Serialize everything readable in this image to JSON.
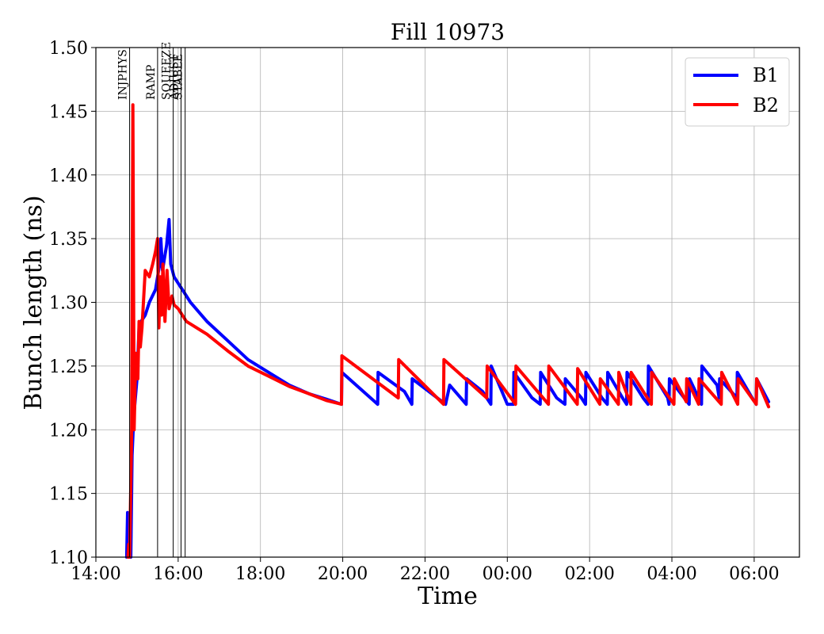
{
  "chart_data": {
    "type": "line",
    "title": "Fill 10973",
    "xlabel": "Time",
    "ylabel": "Bunch length (ns)",
    "xlim_hours": [
      14.0,
      31.1
    ],
    "ylim": [
      1.1,
      1.5
    ],
    "grid": true,
    "legend_position": "top-right",
    "x_ticks": [
      {
        "value": 14,
        "label": "14:00"
      },
      {
        "value": 16,
        "label": "16:00"
      },
      {
        "value": 18,
        "label": "18:00"
      },
      {
        "value": 20,
        "label": "20:00"
      },
      {
        "value": 22,
        "label": "22:00"
      },
      {
        "value": 24,
        "label": "00:00"
      },
      {
        "value": 26,
        "label": "02:00"
      },
      {
        "value": 28,
        "label": "04:00"
      },
      {
        "value": 30,
        "label": "06:00"
      }
    ],
    "y_ticks": [
      {
        "value": 1.1,
        "label": "1.10"
      },
      {
        "value": 1.15,
        "label": "1.15"
      },
      {
        "value": 1.2,
        "label": "1.20"
      },
      {
        "value": 1.25,
        "label": "1.25"
      },
      {
        "value": 1.3,
        "label": "1.30"
      },
      {
        "value": 1.35,
        "label": "1.35"
      },
      {
        "value": 1.4,
        "label": "1.40"
      },
      {
        "value": 1.45,
        "label": "1.45"
      },
      {
        "value": 1.5,
        "label": "1.50"
      }
    ],
    "phases": [
      {
        "name": "INJPHYS",
        "x": 14.82
      },
      {
        "name": "RAMP",
        "x": 15.5
      },
      {
        "name": "SQUEEZE",
        "x": 15.88
      },
      {
        "name": "ADJUST",
        "x": 16.07
      },
      {
        "name": "STABLE",
        "x": 16.17
      }
    ],
    "series": [
      {
        "name": "B1",
        "color": "#0000ff",
        "x": [
          14.75,
          14.77,
          14.8,
          14.85,
          14.88,
          14.92,
          15.0,
          15.05,
          15.1,
          15.2,
          15.3,
          15.45,
          15.55,
          15.58,
          15.62,
          15.67,
          15.72,
          15.78,
          15.82,
          15.9,
          16.0,
          16.1,
          16.3,
          16.7,
          17.2,
          17.7,
          18.2,
          18.7,
          19.2,
          19.6,
          19.97,
          19.98,
          20.85,
          20.86,
          21.5,
          21.68,
          21.69,
          22.5,
          22.6,
          23.0,
          23.01,
          23.4,
          23.6,
          23.61,
          24.0,
          24.15,
          24.16,
          24.6,
          24.8,
          24.81,
          25.2,
          25.4,
          25.41,
          25.8,
          25.9,
          25.91,
          26.3,
          26.43,
          26.44,
          26.8,
          26.9,
          26.91,
          27.3,
          27.42,
          27.43,
          27.9,
          27.93,
          27.94,
          28.3,
          28.42,
          28.43,
          28.72,
          28.73,
          29.1,
          29.15,
          29.16,
          29.58,
          29.59,
          29.95,
          30.05,
          30.06,
          30.35
        ],
        "y": [
          1.1,
          1.135,
          1.1,
          1.1,
          1.18,
          1.21,
          1.24,
          1.28,
          1.285,
          1.29,
          1.3,
          1.31,
          1.33,
          1.35,
          1.325,
          1.335,
          1.345,
          1.365,
          1.33,
          1.32,
          1.315,
          1.31,
          1.3,
          1.285,
          1.27,
          1.255,
          1.245,
          1.235,
          1.228,
          1.224,
          1.22,
          1.245,
          1.22,
          1.245,
          1.23,
          1.22,
          1.24,
          1.22,
          1.235,
          1.22,
          1.24,
          1.23,
          1.22,
          1.25,
          1.22,
          1.22,
          1.245,
          1.225,
          1.22,
          1.245,
          1.225,
          1.22,
          1.24,
          1.225,
          1.22,
          1.245,
          1.225,
          1.22,
          1.245,
          1.225,
          1.22,
          1.245,
          1.225,
          1.22,
          1.25,
          1.225,
          1.22,
          1.24,
          1.225,
          1.22,
          1.24,
          1.22,
          1.25,
          1.235,
          1.225,
          1.24,
          1.225,
          1.245,
          1.225,
          1.22,
          1.24,
          1.222
        ]
      },
      {
        "name": "B2",
        "color": "#ff0000",
        "x": [
          14.78,
          14.8,
          14.82,
          14.87,
          14.9,
          14.93,
          14.97,
          15.02,
          15.05,
          15.08,
          15.12,
          15.2,
          15.3,
          15.38,
          15.45,
          15.5,
          15.53,
          15.57,
          15.6,
          15.63,
          15.68,
          15.73,
          15.78,
          15.85,
          15.9,
          16.0,
          16.2,
          16.7,
          17.2,
          17.7,
          18.2,
          18.7,
          19.2,
          19.6,
          19.97,
          19.98,
          21.35,
          21.36,
          22.45,
          22.46,
          23.5,
          23.51,
          24.2,
          24.21,
          25.0,
          25.01,
          25.7,
          25.71,
          26.25,
          26.26,
          26.7,
          26.71,
          27.0,
          27.01,
          27.5,
          27.51,
          28.05,
          28.06,
          28.35,
          28.36,
          28.65,
          28.66,
          29.2,
          29.21,
          29.6,
          29.61,
          30.05,
          30.06,
          30.35
        ],
        "y": [
          1.1,
          1.11,
          1.1,
          1.2,
          1.455,
          1.2,
          1.26,
          1.24,
          1.285,
          1.265,
          1.28,
          1.325,
          1.32,
          1.33,
          1.34,
          1.35,
          1.28,
          1.32,
          1.29,
          1.33,
          1.285,
          1.325,
          1.295,
          1.305,
          1.298,
          1.295,
          1.285,
          1.275,
          1.262,
          1.25,
          1.242,
          1.234,
          1.228,
          1.223,
          1.22,
          1.258,
          1.225,
          1.255,
          1.22,
          1.255,
          1.225,
          1.25,
          1.22,
          1.25,
          1.22,
          1.25,
          1.22,
          1.248,
          1.22,
          1.24,
          1.22,
          1.245,
          1.22,
          1.245,
          1.22,
          1.245,
          1.22,
          1.24,
          1.222,
          1.24,
          1.22,
          1.24,
          1.22,
          1.245,
          1.22,
          1.24,
          1.22,
          1.24,
          1.218
        ]
      }
    ]
  }
}
